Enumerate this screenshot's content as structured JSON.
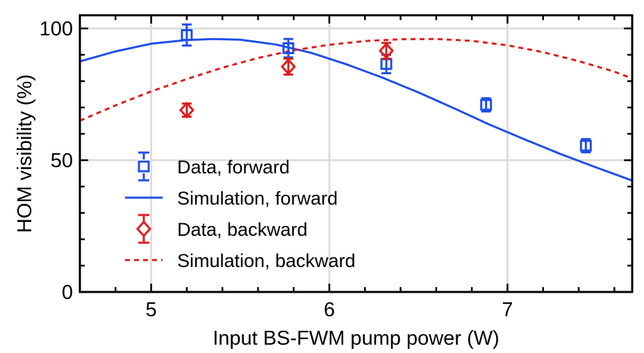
{
  "chart_data": {
    "type": "scatter",
    "xlabel": "Input BS-FWM pump power (W)",
    "ylabel": "HOM visibility (%)",
    "xlim": [
      4.6,
      7.7
    ],
    "ylim": [
      0,
      105
    ],
    "x_ticks": [
      5,
      6,
      7
    ],
    "y_ticks": [
      0,
      50,
      100
    ],
    "x_tick_labels": [
      "5",
      "6",
      "7"
    ],
    "y_tick_labels": [
      "0",
      "50",
      "100"
    ],
    "grid": true,
    "legend_position": "lower-left",
    "colors": {
      "forward": "#1f4fe6",
      "backward": "#e01b1b",
      "grid": "#dddddd"
    },
    "series": [
      {
        "name": "Data, forward",
        "kind": "points",
        "marker": "square",
        "color": "#1f4fe6",
        "x": [
          5.2,
          5.77,
          6.32,
          6.88,
          7.44
        ],
        "y": [
          97.5,
          92.5,
          86.5,
          71.0,
          55.5
        ],
        "yerr": [
          4.0,
          3.5,
          3.5,
          2.5,
          2.5
        ]
      },
      {
        "name": "Simulation, forward",
        "kind": "line",
        "dash": false,
        "color": "#1f4fe6",
        "x": [
          4.6,
          4.8,
          5.0,
          5.2,
          5.35,
          5.5,
          5.7,
          5.9,
          6.1,
          6.3,
          6.5,
          6.7,
          6.9,
          7.1,
          7.3,
          7.5,
          7.7
        ],
        "y": [
          87.5,
          91.3,
          94.2,
          95.6,
          96.0,
          95.7,
          93.9,
          90.7,
          86.3,
          81.3,
          75.7,
          69.7,
          63.5,
          57.8,
          52.3,
          47.2,
          42.3
        ]
      },
      {
        "name": "Data, backward",
        "kind": "points",
        "marker": "diamond",
        "color": "#e01b1b",
        "x": [
          5.2,
          5.77,
          6.32
        ],
        "y": [
          69.0,
          85.5,
          91.5
        ],
        "yerr": [
          2.5,
          3.0,
          3.0
        ]
      },
      {
        "name": "Simulation, backward",
        "kind": "line",
        "dash": true,
        "color": "#e01b1b",
        "x": [
          4.6,
          4.8,
          5.0,
          5.2,
          5.4,
          5.6,
          5.8,
          6.0,
          6.2,
          6.4,
          6.6,
          6.8,
          7.0,
          7.2,
          7.4,
          7.6,
          7.7
        ],
        "y": [
          65.0,
          70.8,
          76.1,
          80.8,
          85.1,
          88.8,
          91.7,
          93.8,
          95.2,
          95.9,
          96.0,
          95.3,
          93.6,
          91.0,
          87.6,
          83.6,
          81.0
        ]
      }
    ]
  }
}
